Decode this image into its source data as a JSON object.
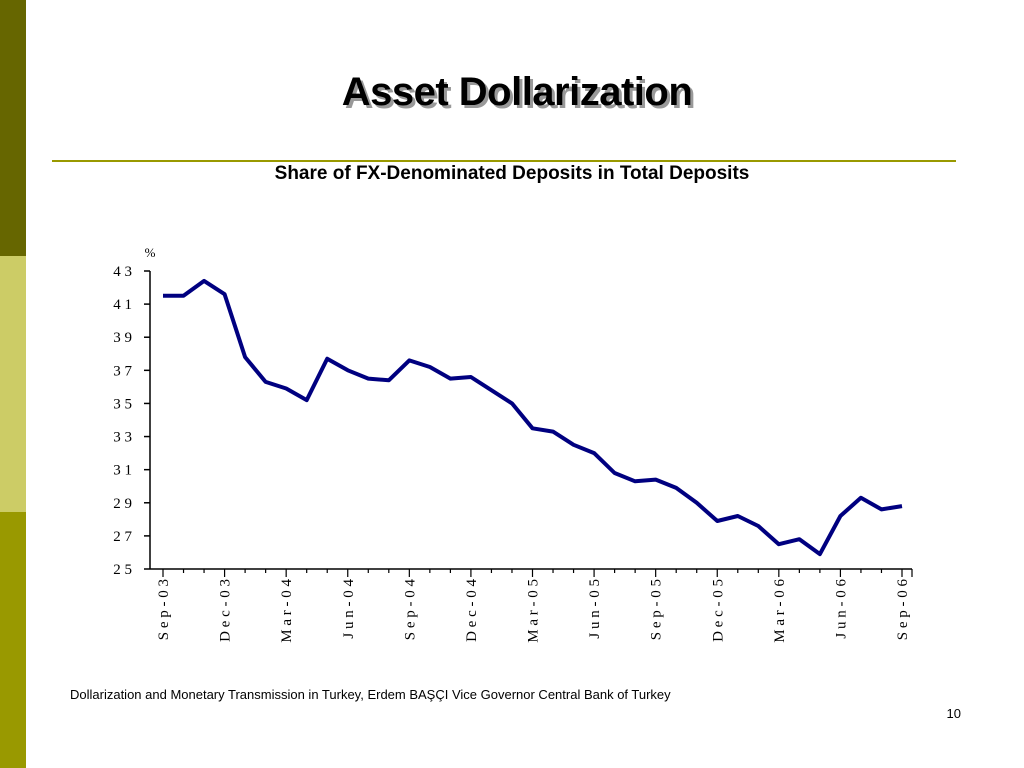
{
  "slide": {
    "title": "Asset Dollarization",
    "footer": "Dollarization and Monetary Transmission in Turkey, Erdem BAŞÇI  Vice Governor Central Bank of Turkey",
    "page_number": "10"
  },
  "colors": {
    "band_top": "#666600",
    "band_mid": "#cccc66",
    "band_bot": "#999900",
    "rule": "#999900",
    "series_line": "#000080"
  },
  "chart_data": {
    "type": "line",
    "title": "Share of FX-Denominated Deposits in Total Deposits",
    "ylabel": "%",
    "xlabel": "",
    "ylim": [
      25,
      43
    ],
    "yticks": [
      25,
      27,
      29,
      31,
      33,
      35,
      37,
      39,
      41,
      43
    ],
    "ytick_labels": [
      "2 5",
      "2 7",
      "2 9",
      "3 1",
      "3 3",
      "3 5",
      "3 7",
      "3 9",
      "4 1",
      "4 3"
    ],
    "x_labels": [
      "S e p - 0 3",
      "D e c - 0 3",
      "M a r - 0 4",
      "J u n - 0 4",
      "S e p - 0 4",
      "D e c - 0 4",
      "M a r - 0 5",
      "J u n - 0 5",
      "S e p - 0 5",
      "D e c - 0 5",
      "M a r - 0 6",
      "J u n - 0 6",
      "S e p - 0 6"
    ],
    "grid": false,
    "legend": "none",
    "series": [
      {
        "x": [
          "Sep-03",
          "Oct-03",
          "Nov-03",
          "Dec-03",
          "Jan-04",
          "Feb-04",
          "Mar-04",
          "Apr-04",
          "May-04",
          "Jun-04",
          "Jul-04",
          "Aug-04",
          "Sep-04",
          "Oct-04",
          "Nov-04",
          "Dec-04",
          "Jan-05",
          "Feb-05",
          "Mar-05",
          "Apr-05",
          "May-05",
          "Jun-05",
          "Jul-05",
          "Aug-05",
          "Sep-05",
          "Oct-05",
          "Nov-05",
          "Dec-05",
          "Jan-06",
          "Feb-06",
          "Mar-06",
          "Apr-06",
          "May-06",
          "Jun-06",
          "Jul-06",
          "Aug-06",
          "Sep-06"
        ],
        "values": [
          41.5,
          41.5,
          42.4,
          41.6,
          37.8,
          36.3,
          35.9,
          35.2,
          37.7,
          37.0,
          36.5,
          36.4,
          37.6,
          37.2,
          36.5,
          36.6,
          35.8,
          35.0,
          33.5,
          33.3,
          32.5,
          32.0,
          30.8,
          30.3,
          30.4,
          29.9,
          29.0,
          27.9,
          28.2,
          27.6,
          26.5,
          26.8,
          25.9,
          28.2,
          29.3,
          28.6,
          28.8
        ]
      }
    ]
  }
}
